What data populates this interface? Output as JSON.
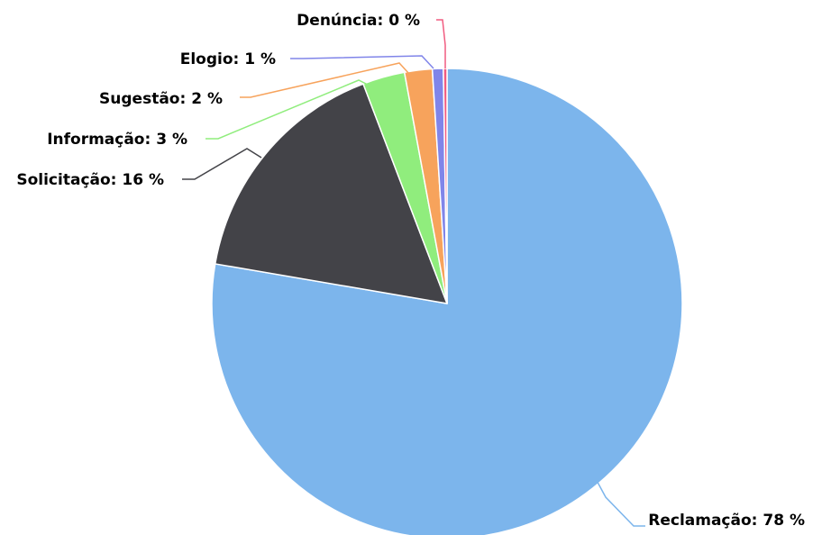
{
  "chart_data": {
    "type": "pie",
    "title": "",
    "start_angle_deg": 0,
    "direction": "clockwise",
    "slices": [
      {
        "name": "Reclamação",
        "value": 78,
        "label": "Reclamação: 78 %",
        "color": "#7cb5ec"
      },
      {
        "name": "Solicitação",
        "value": 16,
        "label": "Solicitação: 16 %",
        "color": "#434348"
      },
      {
        "name": "Informação",
        "value": 3,
        "label": "Informação: 3 %",
        "color": "#90ed7d"
      },
      {
        "name": "Sugestão",
        "value": 2,
        "label": "Sugestão: 2 %",
        "color": "#f7a35c"
      },
      {
        "name": "Elogio",
        "value": 1,
        "label": "Elogio: 1 %",
        "color": "#8085e9"
      },
      {
        "name": "Denúncia",
        "value": 0,
        "label": "Denúncia: 0 %",
        "color": "#f15c80"
      }
    ]
  }
}
